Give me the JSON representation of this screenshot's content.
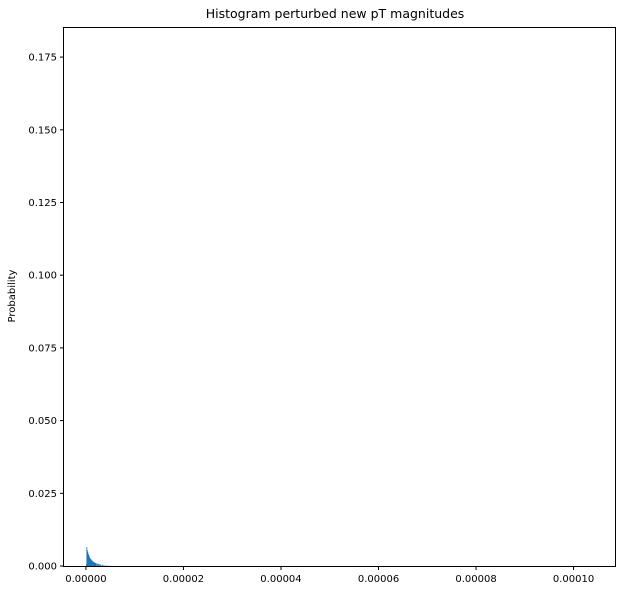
{
  "chart_data": {
    "type": "bar",
    "title": "Histogram perturbed new pT magnitudes",
    "xlabel": "",
    "ylabel": "Probability",
    "xlim": [
      -4.5e-06,
      0.0001085
    ],
    "ylim": [
      0,
      0.185
    ],
    "xticks": [
      0,
      2e-05,
      4e-05,
      6e-05,
      8e-05,
      0.0001
    ],
    "xtick_labels": [
      "0.00000",
      "0.00002",
      "0.00004",
      "0.00006",
      "0.00008",
      "0.00010"
    ],
    "yticks": [
      0,
      0.025,
      0.05,
      0.075,
      0.1,
      0.125,
      0.15,
      0.175
    ],
    "ytick_labels": [
      "0.000",
      "0.025",
      "0.050",
      "0.075",
      "0.100",
      "0.125",
      "0.150",
      "0.175"
    ],
    "grid": false,
    "color": "#1f77b4",
    "bins": [
      {
        "x": 0.0,
        "value": 0.0005
      },
      {
        "x": 1e-07,
        "value": 0.0065
      },
      {
        "x": 2e-07,
        "value": 0.0055
      },
      {
        "x": 3e-07,
        "value": 0.0048
      },
      {
        "x": 4e-07,
        "value": 0.0042
      },
      {
        "x": 5e-07,
        "value": 0.0038
      },
      {
        "x": 6e-07,
        "value": 0.0033
      },
      {
        "x": 7e-07,
        "value": 0.0029
      },
      {
        "x": 8e-07,
        "value": 0.0026
      },
      {
        "x": 9e-07,
        "value": 0.0024
      },
      {
        "x": 1e-06,
        "value": 0.0022
      },
      {
        "x": 1.1e-06,
        "value": 0.002
      },
      {
        "x": 1.2e-06,
        "value": 0.0018
      },
      {
        "x": 1.3e-06,
        "value": 0.0016
      },
      {
        "x": 1.4e-06,
        "value": 0.0015
      },
      {
        "x": 1.5e-06,
        "value": 0.0014
      },
      {
        "x": 1.6e-06,
        "value": 0.0013
      },
      {
        "x": 1.7e-06,
        "value": 0.0012
      },
      {
        "x": 1.8e-06,
        "value": 0.0011
      },
      {
        "x": 1.9e-06,
        "value": 0.001
      },
      {
        "x": 2e-06,
        "value": 0.00095
      },
      {
        "x": 2.2e-06,
        "value": 0.00085
      },
      {
        "x": 2.4e-06,
        "value": 0.00075
      },
      {
        "x": 2.6e-06,
        "value": 0.00065
      },
      {
        "x": 2.8e-06,
        "value": 0.00055
      },
      {
        "x": 3e-06,
        "value": 0.00048
      },
      {
        "x": 3.3e-06,
        "value": 0.0004
      },
      {
        "x": 3.6e-06,
        "value": 0.00032
      },
      {
        "x": 4e-06,
        "value": 0.00025
      },
      {
        "x": 4.5e-06,
        "value": 0.00018
      },
      {
        "x": 5e-06,
        "value": 0.0001
      }
    ],
    "bin_width": 1e-07
  }
}
